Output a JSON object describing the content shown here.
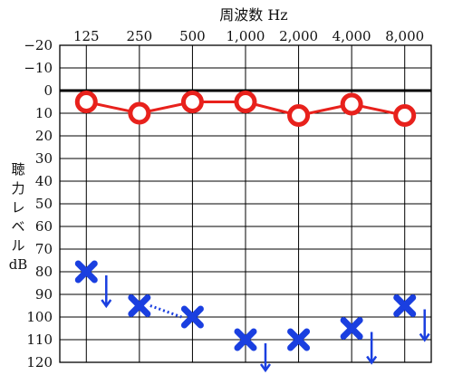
{
  "chart_data": {
    "type": "scatter",
    "title": "周波数 Hz",
    "xlabel": "周波数 Hz",
    "ylabel_lines": [
      "聴",
      "力",
      "レ",
      "ベ",
      "ル",
      "dB"
    ],
    "x_categories": [
      "125",
      "250",
      "500",
      "1,000",
      "2,000",
      "4,000",
      "8,000"
    ],
    "y_ticks": [
      "−20",
      "−10",
      "0",
      "10",
      "20",
      "30",
      "40",
      "50",
      "60",
      "70",
      "80",
      "90",
      "100",
      "110",
      "120"
    ],
    "y_tick_values": [
      -20,
      -10,
      0,
      10,
      20,
      30,
      40,
      50,
      60,
      70,
      80,
      90,
      100,
      110,
      120
    ],
    "ylim": [
      -20,
      120
    ],
    "y_inverted": true,
    "grid": true,
    "reference_line": 0,
    "series": [
      {
        "marker": "circle",
        "connected": "solid",
        "color": "#e8211c",
        "points": [
          {
            "x": "125",
            "y": 5
          },
          {
            "x": "250",
            "y": 10
          },
          {
            "x": "500",
            "y": 5
          },
          {
            "x": "1,000",
            "y": 5
          },
          {
            "x": "2,000",
            "y": 11
          },
          {
            "x": "4,000",
            "y": 6
          },
          {
            "x": "8,000",
            "y": 11
          }
        ]
      },
      {
        "marker": "cross",
        "color": "#1a3fe0",
        "points": [
          {
            "x": "125",
            "y": 80,
            "no_response": true
          },
          {
            "x": "250",
            "y": 95
          },
          {
            "x": "500",
            "y": 100
          },
          {
            "x": "1,000",
            "y": 110,
            "no_response": true
          },
          {
            "x": "2,000",
            "y": 110
          },
          {
            "x": "4,000",
            "y": 105,
            "no_response": true
          },
          {
            "x": "8,000",
            "y": 95,
            "no_response": true
          }
        ],
        "dotted_links": [
          [
            "250",
            "500"
          ]
        ]
      }
    ]
  }
}
